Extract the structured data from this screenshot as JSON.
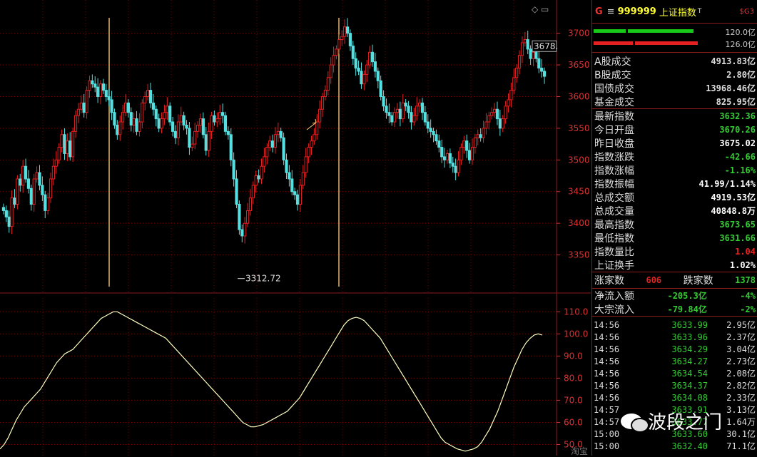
{
  "header": {
    "market_tag": "G",
    "code": "999999",
    "name": "上证指数",
    "name_sup": "T",
    "tag": "$G3"
  },
  "bars": {
    "green_value": "120.0亿",
    "red_value": "126.0亿",
    "green_color": "#19c919",
    "red_color": "#e52020"
  },
  "trade_rows": [
    {
      "label": "A股成交",
      "value": "4913.83亿",
      "color": "#dddddd"
    },
    {
      "label": "B股成交",
      "value": "2.80亿",
      "color": "#dddddd"
    },
    {
      "label": "国债成交",
      "value": "13968.46亿",
      "color": "#dddddd"
    },
    {
      "label": "基金成交",
      "value": "825.95亿",
      "color": "#dddddd"
    }
  ],
  "index_rows": [
    {
      "label": "最新指数",
      "value": "3632.36",
      "color": "#33cc33"
    },
    {
      "label": "今日开盘",
      "value": "3670.26",
      "color": "#33cc33"
    },
    {
      "label": "昨日收盘",
      "value": "3675.02",
      "color": "#ffffff"
    },
    {
      "label": "指数涨跌",
      "value": "-42.66",
      "color": "#33cc33"
    },
    {
      "label": "指数涨幅",
      "value": "-1.16%",
      "color": "#33cc33"
    },
    {
      "label": "指数振幅",
      "value": "41.99/1.14%",
      "color": "#ffffff"
    },
    {
      "label": "总成交额",
      "value": "4919.53亿",
      "color": "#ffffff"
    },
    {
      "label": "总成交量",
      "value": "40848.8万",
      "color": "#ffffff"
    },
    {
      "label": "最高指数",
      "value": "3673.65",
      "color": "#33cc33"
    },
    {
      "label": "最低指数",
      "value": "3631.66",
      "color": "#33cc33"
    },
    {
      "label": "指数量比",
      "value": "1.04",
      "color": "#e52020"
    },
    {
      "label": "上证换手",
      "value": "1.02%",
      "color": "#ffffff"
    }
  ],
  "breadth": {
    "up_label": "涨家数",
    "up_value": "606",
    "down_label": "跌家数",
    "down_value": "1378"
  },
  "flow_rows": [
    {
      "label": "净流入额",
      "value": "-205.3亿",
      "pct": "-4%"
    },
    {
      "label": "大宗流入",
      "value": "-79.84亿",
      "pct": "-2%"
    }
  ],
  "ticks": [
    {
      "time": "14:56",
      "price": "3633.99",
      "amount": "2.95亿"
    },
    {
      "time": "14:56",
      "price": "3633.96",
      "amount": "2.37亿"
    },
    {
      "time": "14:56",
      "price": "3634.29",
      "amount": "3.04亿"
    },
    {
      "time": "14:56",
      "price": "3634.27",
      "amount": "2.73亿"
    },
    {
      "time": "14:56",
      "price": "3634.54",
      "amount": "2.08亿"
    },
    {
      "time": "14:56",
      "price": "3634.37",
      "amount": "2.82亿"
    },
    {
      "time": "14:56",
      "price": "3634.08",
      "amount": "2.33亿"
    },
    {
      "time": "14:57",
      "price": "3633.91",
      "amount": "3.13亿"
    },
    {
      "time": "14:57",
      "price": "3633.77",
      "amount": "1.64万"
    },
    {
      "time": "15:00",
      "price": "3633.60",
      "amount": "30.1亿"
    },
    {
      "time": "15:00",
      "price": "3632.40",
      "amount": "71.1亿"
    }
  ],
  "watermark": {
    "text": "波段之门",
    "sub": "淘宝"
  },
  "chart_data": [
    {
      "type": "candlestick",
      "ylim": [
        3300,
        3730
      ],
      "yticks": [
        3350,
        3400,
        3450,
        3500,
        3550,
        3600,
        3650,
        3700
      ],
      "annotations": [
        {
          "text": "3312.72",
          "value": 3312.72
        },
        {
          "text": "3678.",
          "value": 3678
        }
      ],
      "up_color": "#e52020",
      "down_color": "#55e0e0",
      "close_series": [
        3420,
        3410,
        3395,
        3440,
        3430,
        3470,
        3460,
        3490,
        3470,
        3455,
        3430,
        3470,
        3480,
        3460,
        3445,
        3420,
        3440,
        3470,
        3490,
        3500,
        3520,
        3540,
        3510,
        3530,
        3505,
        3545,
        3570,
        3580,
        3590,
        3575,
        3610,
        3625,
        3620,
        3615,
        3600,
        3620,
        3610,
        3600,
        3595,
        3575,
        3555,
        3540,
        3560,
        3575,
        3590,
        3575,
        3555,
        3565,
        3545,
        3560,
        3590,
        3600,
        3610,
        3590,
        3580,
        3565,
        3550,
        3565,
        3575,
        3585,
        3560,
        3545,
        3535,
        3560,
        3570,
        3555,
        3550,
        3520,
        3525,
        3545,
        3555,
        3565,
        3540,
        3515,
        3545,
        3570,
        3560,
        3565,
        3575,
        3570,
        3545,
        3540,
        3500,
        3470,
        3430,
        3390,
        3380,
        3400,
        3420,
        3440,
        3460,
        3475,
        3470,
        3490,
        3505,
        3520,
        3530,
        3520,
        3540,
        3545,
        3535,
        3500,
        3480,
        3470,
        3450,
        3445,
        3430,
        3460,
        3480,
        3505,
        3520,
        3530,
        3540,
        3560,
        3580,
        3600,
        3610,
        3630,
        3650,
        3665,
        3675,
        3690,
        3695,
        3710,
        3700,
        3680,
        3660,
        3645,
        3640,
        3620,
        3635,
        3650,
        3670,
        3655,
        3640,
        3625,
        3600,
        3585,
        3575,
        3570,
        3560,
        3575,
        3580,
        3565,
        3590,
        3585,
        3575,
        3560,
        3570,
        3585,
        3590,
        3575,
        3560,
        3550,
        3545,
        3540,
        3530,
        3520,
        3505,
        3500,
        3510,
        3495,
        3490,
        3480,
        3500,
        3520,
        3530,
        3515,
        3500,
        3520,
        3535,
        3540,
        3535,
        3550,
        3560,
        3570,
        3575,
        3580,
        3565,
        3550,
        3565,
        3585,
        3595,
        3610,
        3630,
        3645,
        3665,
        3685,
        3690,
        3675,
        3660,
        3670,
        3660,
        3645,
        3640,
        3632
      ]
    },
    {
      "type": "line",
      "ylim": [
        45,
        113
      ],
      "yticks": [
        50,
        60,
        70,
        80,
        90,
        100,
        110
      ],
      "line_color": "#ffffc0",
      "values": [
        48,
        50,
        53,
        57,
        61,
        64,
        67,
        69,
        71,
        73,
        75,
        78,
        81,
        84,
        87,
        89,
        91,
        92,
        93,
        95,
        97,
        99,
        101,
        103,
        105,
        107,
        108,
        109,
        110,
        110,
        109,
        108,
        107,
        106,
        105,
        104,
        103,
        102,
        101,
        100,
        99,
        98,
        96,
        94,
        92,
        90,
        88,
        86,
        84,
        82,
        80,
        78,
        76,
        74,
        72,
        70,
        68,
        66,
        64,
        62,
        60,
        59,
        58,
        58,
        58.5,
        59,
        60,
        61,
        62,
        63,
        64,
        65,
        67,
        69,
        71,
        74,
        77,
        80,
        83,
        86,
        89,
        92,
        95,
        98,
        101,
        104,
        106,
        107,
        107.5,
        107,
        106,
        104,
        102,
        100,
        98,
        95,
        92,
        89,
        86,
        83,
        80,
        77,
        74,
        71,
        68,
        65,
        62,
        59,
        56,
        53,
        51,
        50,
        49,
        48,
        47.5,
        47,
        47.5,
        48,
        49,
        51,
        54,
        57,
        61,
        65,
        70,
        75,
        80,
        85,
        89,
        93,
        96,
        98,
        99.5,
        100,
        99.5
      ]
    }
  ]
}
